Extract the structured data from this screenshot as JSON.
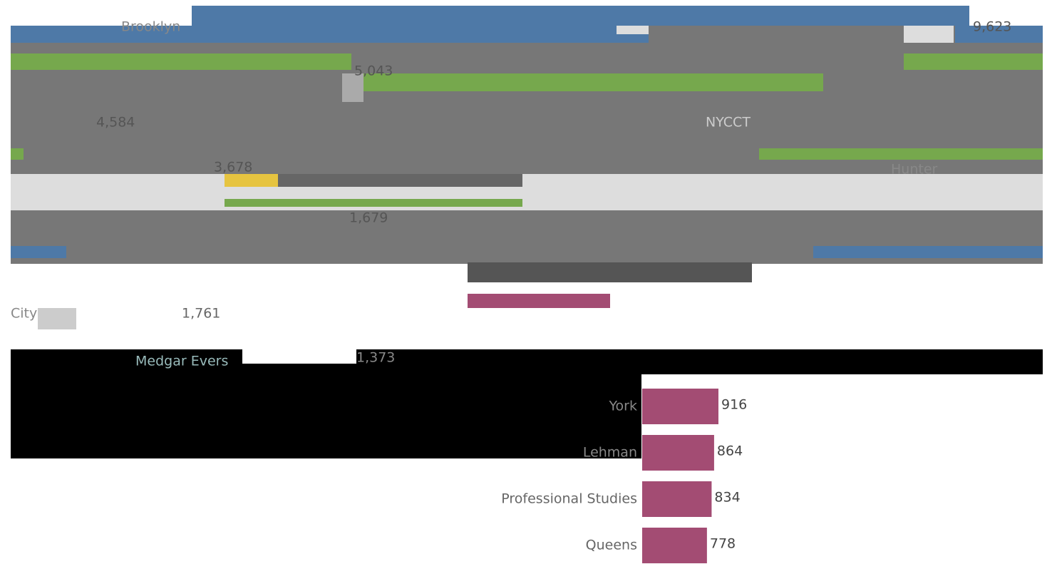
{
  "fragments": [
    {
      "label": "Brooklyn"
    },
    {
      "label": "9,623"
    },
    {
      "label": "5,043"
    },
    {
      "label": "4,584"
    },
    {
      "label": "NYCCT"
    },
    {
      "label": "3,678"
    },
    {
      "label": "Hunter"
    },
    {
      "label": "1,679"
    },
    {
      "label": "City"
    },
    {
      "label": "1,761"
    },
    {
      "label": "Medgar Evers"
    },
    {
      "label": "1,373"
    }
  ],
  "chart_data": {
    "type": "bar",
    "orientation": "horizontal",
    "categories": [
      "York",
      "Lehman",
      "Professional Studies",
      "Queens"
    ],
    "values": [
      916,
      864,
      834,
      778
    ],
    "color": "#a34c73"
  }
}
